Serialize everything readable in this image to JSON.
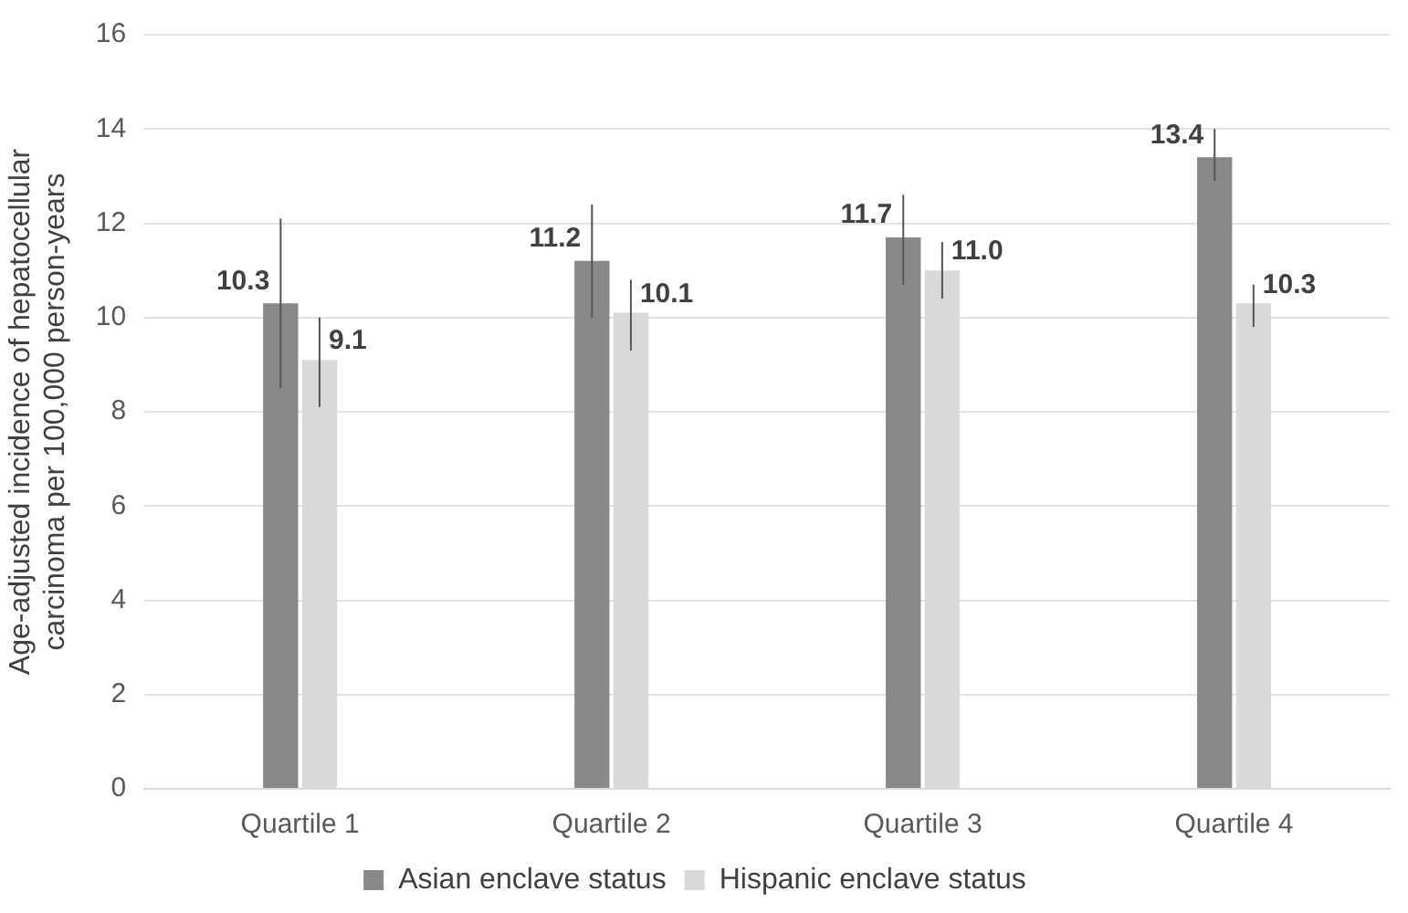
{
  "chart_data": {
    "type": "bar",
    "ylabel": "Age-adjusted incidence of hepatocellular carcinoma per 100,000 person-years",
    "categories": [
      "Quartile 1",
      "Quartile 2",
      "Quartile 3",
      "Quartile 4"
    ],
    "series": [
      {
        "name": "Asian enclave status",
        "color": "#888888",
        "values": [
          10.3,
          11.2,
          11.7,
          13.4
        ],
        "errors": [
          [
            8.5,
            12.1
          ],
          [
            10.0,
            12.4
          ],
          [
            10.7,
            12.6
          ],
          [
            12.9,
            14.0
          ]
        ],
        "value_labels": [
          "10.3",
          "11.2",
          "11.7",
          "13.4"
        ]
      },
      {
        "name": "Hispanic enclave status",
        "color": "#d9d9d9",
        "values": [
          9.1,
          10.1,
          11.0,
          10.3
        ],
        "errors": [
          [
            8.1,
            10.0
          ],
          [
            9.3,
            10.8
          ],
          [
            10.4,
            11.6
          ],
          [
            9.8,
            10.7
          ]
        ],
        "value_labels": [
          "9.1",
          "10.1",
          "11.0",
          "10.3"
        ]
      }
    ],
    "ylim": [
      0,
      16
    ],
    "yticks": [
      0,
      2,
      4,
      6,
      8,
      10,
      12,
      14,
      16
    ],
    "grid": "y",
    "legend": "bottom"
  }
}
